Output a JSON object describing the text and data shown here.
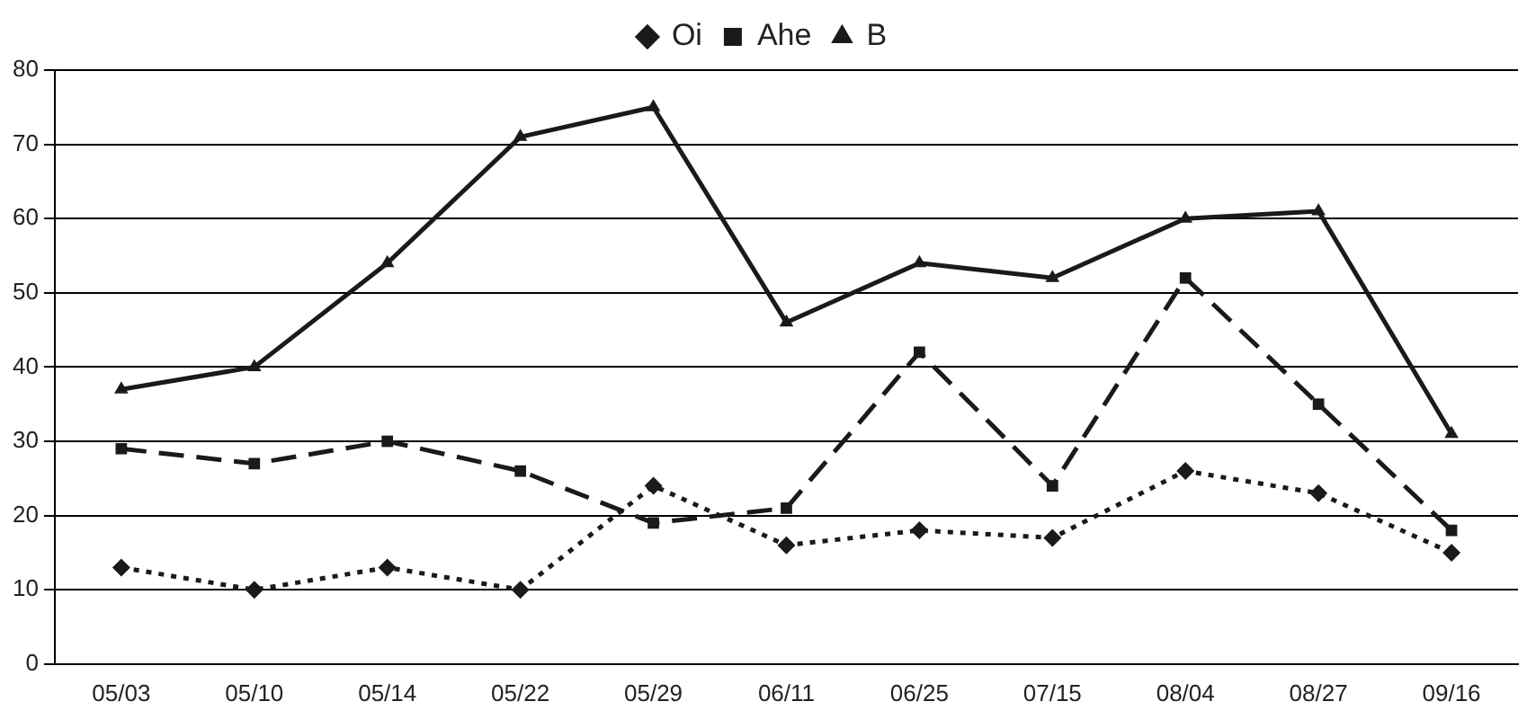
{
  "chart_data": {
    "type": "line",
    "categories": [
      "05/03",
      "05/10",
      "05/14",
      "05/22",
      "05/29",
      "06/11",
      "06/25",
      "07/15",
      "08/04",
      "08/27",
      "09/16"
    ],
    "series": [
      {
        "name": "Oi",
        "color": "#1a1a1a",
        "values": [
          13,
          10,
          13,
          10,
          24,
          16,
          18,
          17,
          26,
          23,
          15
        ],
        "line_style": "dotted",
        "marker": "diamond"
      },
      {
        "name": "Ahe",
        "color": "#1a1a1a",
        "values": [
          29,
          27,
          30,
          26,
          19,
          21,
          42,
          24,
          52,
          35,
          18
        ],
        "line_style": "dashed",
        "marker": "square"
      },
      {
        "name": "B",
        "color": "#1a1a1a",
        "values": [
          37,
          40,
          54,
          71,
          75,
          46,
          54,
          52,
          60,
          61,
          31
        ],
        "line_style": "solid",
        "marker": "triangle"
      }
    ],
    "ylim": [
      0,
      80
    ],
    "yticks": [
      0,
      10,
      20,
      30,
      40,
      50,
      60,
      70,
      80
    ],
    "grid": "y",
    "legend": "top"
  }
}
